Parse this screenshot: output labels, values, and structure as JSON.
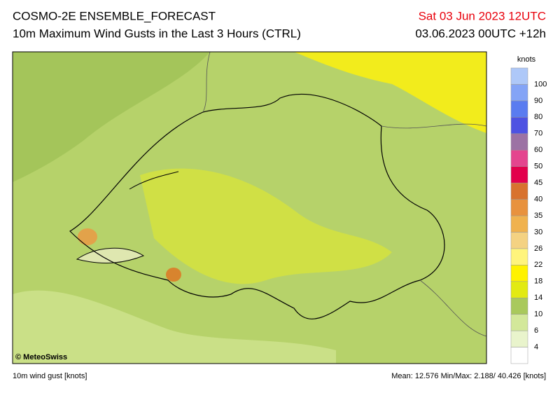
{
  "header": {
    "title": "COSMO-2E ENSEMBLE_FORECAST",
    "subtitle": "10m Maximum Wind Gusts in the Last 3 Hours (CTRL)",
    "valid_time": "Sat 03 Jun 2023 12UTC",
    "run_time": "03.06.2023 00UTC +12h"
  },
  "map": {
    "credit": "© MeteoSwiss"
  },
  "colorbar": {
    "unit": "knots",
    "levels": [
      4,
      6,
      10,
      14,
      18,
      22,
      26,
      30,
      35,
      40,
      45,
      50,
      60,
      70,
      80,
      90,
      100
    ],
    "colors": [
      "#ffffff",
      "#e9f4cc",
      "#d3e89a",
      "#a9c95c",
      "#e2ea12",
      "#fff200",
      "#fff47c",
      "#f4d282",
      "#f0b24e",
      "#e8923e",
      "#d8722e",
      "#e2004c",
      "#e4458e",
      "#9c72a4",
      "#4e52e2",
      "#5a7cf0",
      "#84a4f6",
      "#aec8f8"
    ]
  },
  "footer": {
    "left": "10m wind gust [knots]",
    "right": "Mean: 12.576 Min/Max:  2.188/ 40.426 [knots]"
  }
}
